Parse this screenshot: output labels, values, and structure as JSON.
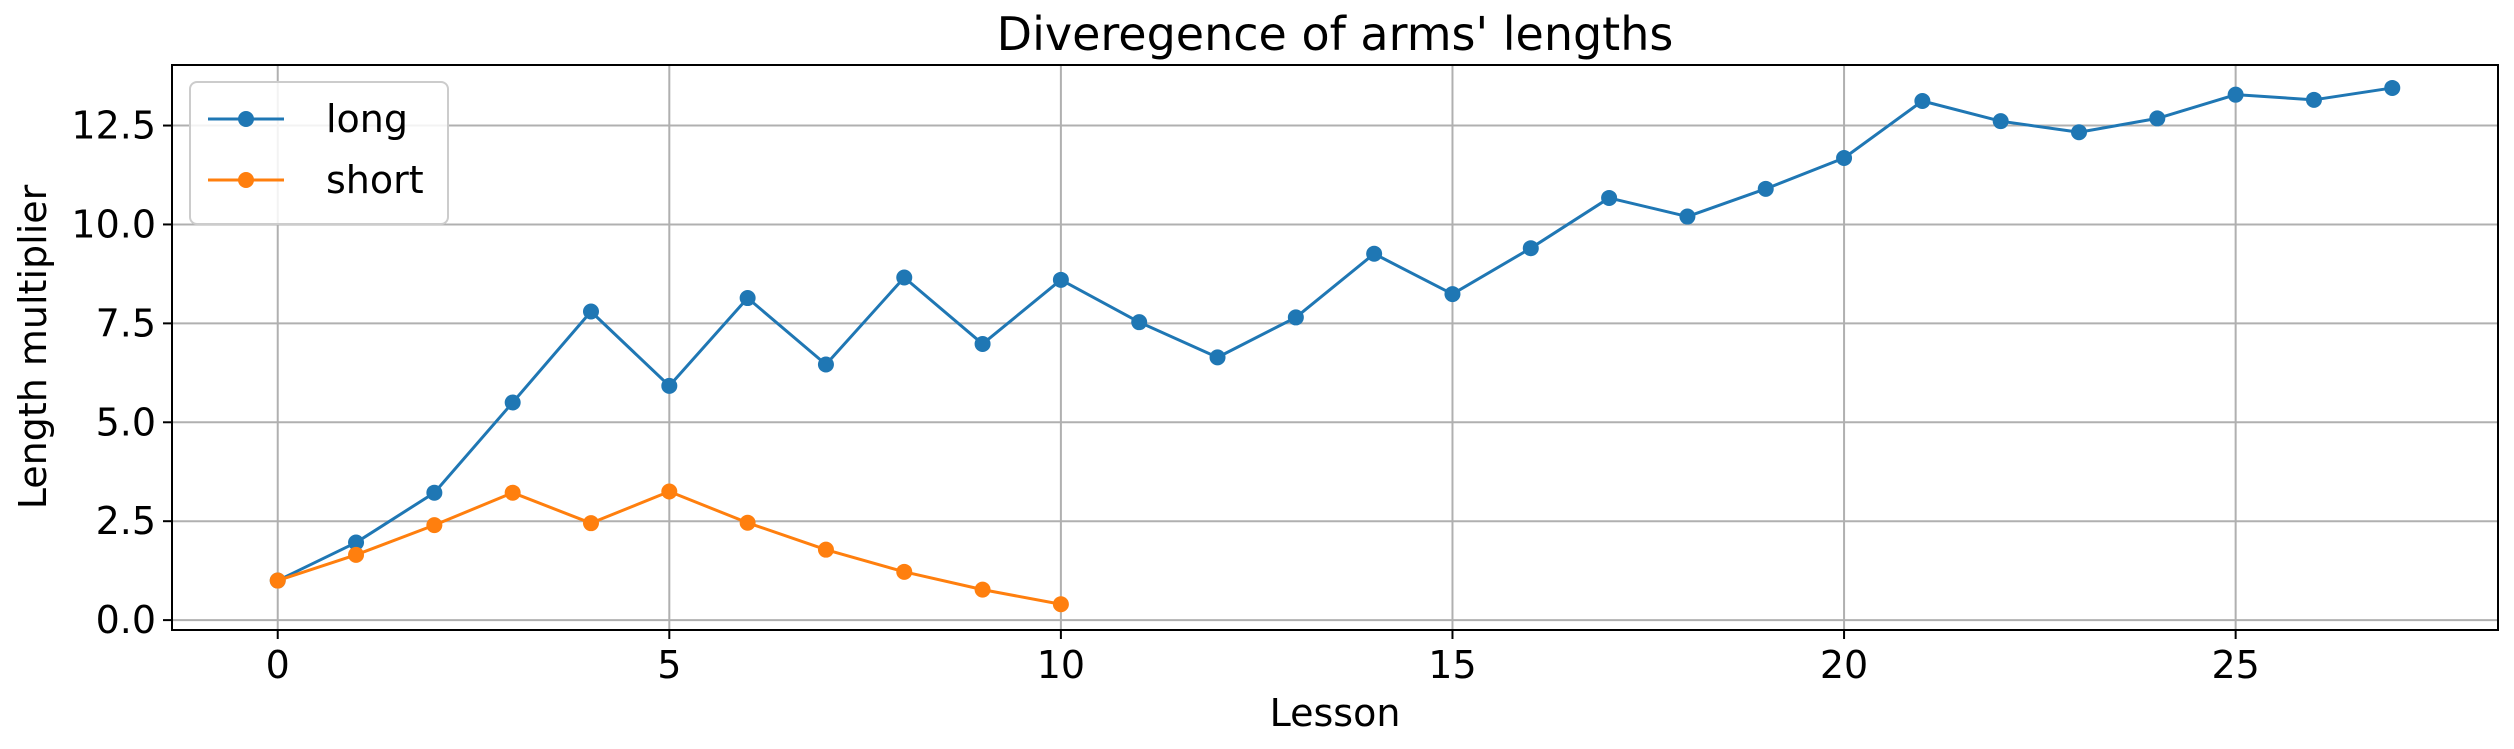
{
  "chart_data": {
    "type": "line",
    "title": "Diveregence of arms' lengths",
    "xlabel": "Lesson",
    "ylabel": "Length multiplier",
    "xlim": [
      -1.35,
      28.35
    ],
    "ylim": [
      -0.25,
      14.03
    ],
    "xticks": [
      0,
      5,
      10,
      15,
      20,
      25
    ],
    "xtick_labels": [
      "0",
      "5",
      "10",
      "15",
      "20",
      "25"
    ],
    "yticks": [
      0.0,
      2.5,
      5.0,
      7.5,
      10.0,
      12.5
    ],
    "ytick_labels": [
      "0.0",
      "2.5",
      "5.0",
      "7.5",
      "10.0",
      "12.5"
    ],
    "grid": true,
    "legend_position": "top-left",
    "series": [
      {
        "name": "long",
        "color": "#1f77b4",
        "marker": "circle",
        "x": [
          0,
          1,
          2,
          3,
          4,
          5,
          6,
          7,
          8,
          9,
          10,
          11,
          12,
          13,
          14,
          15,
          16,
          17,
          18,
          19,
          20,
          21,
          22,
          23,
          24,
          25,
          26,
          27
        ],
        "values": [
          1.0,
          1.96,
          3.22,
          5.5,
          7.8,
          5.92,
          8.14,
          6.46,
          8.66,
          6.98,
          8.6,
          7.53,
          6.64,
          7.65,
          9.26,
          8.24,
          9.4,
          10.67,
          10.2,
          10.9,
          11.68,
          13.12,
          12.61,
          12.33,
          12.68,
          13.28,
          13.15,
          13.45
        ]
      },
      {
        "name": "short",
        "color": "#ff7f0e",
        "marker": "circle",
        "x": [
          0,
          1,
          2,
          3,
          4,
          5,
          6,
          7,
          8,
          9,
          10
        ],
        "values": [
          1.0,
          1.65,
          2.4,
          3.22,
          2.45,
          3.25,
          2.46,
          1.78,
          1.22,
          0.77,
          0.4
        ]
      }
    ]
  }
}
